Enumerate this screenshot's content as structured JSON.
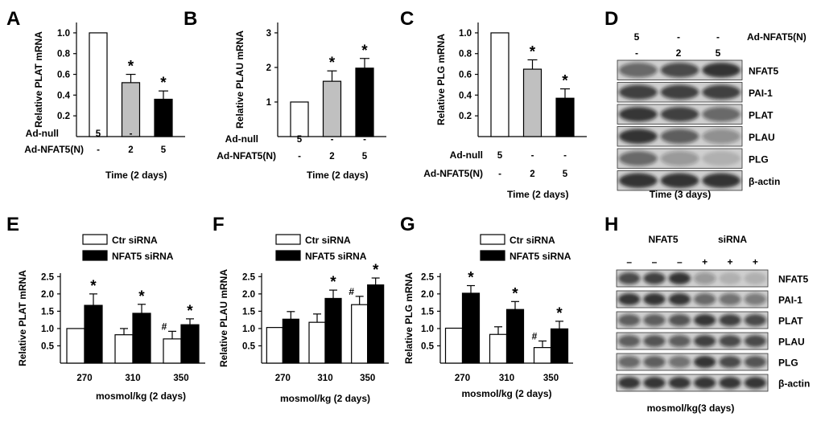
{
  "chart_data": [
    {
      "panel": "A",
      "type": "bar",
      "ylabel": "Relative PLAT mRNA",
      "xlabel": "Time (2 days)",
      "ylim": [
        0,
        1.1
      ],
      "yticks": [
        0.2,
        0.4,
        0.6,
        0.8,
        "1.0"
      ],
      "rows": [
        {
          "label": "Ad-null",
          "values": [
            "5",
            "-",
            "-"
          ]
        },
        {
          "label": "Ad-NFAT5(N)",
          "values": [
            "-",
            "2",
            "5"
          ]
        }
      ],
      "bars": [
        {
          "value": 1.0,
          "error": 0,
          "fill": "#ffffff",
          "mark": ""
        },
        {
          "value": 0.52,
          "error": 0.08,
          "fill": "#c0c0c0",
          "mark": "*"
        },
        {
          "value": 0.36,
          "error": 0.08,
          "fill": "#000000",
          "mark": "*"
        }
      ]
    },
    {
      "panel": "B",
      "type": "bar",
      "ylabel": "Relative PLAU mRNA",
      "xlabel": "Time (2 days)",
      "ylim": [
        0,
        3.3
      ],
      "yticks": [
        "1",
        "2",
        "3"
      ],
      "rows": [
        {
          "label": "Ad-null",
          "values": [
            "5",
            "-",
            "-"
          ]
        },
        {
          "label": "Ad-NFAT5(N)",
          "values": [
            "-",
            "2",
            "5"
          ]
        }
      ],
      "bars": [
        {
          "value": 1.0,
          "error": 0,
          "fill": "#ffffff",
          "mark": ""
        },
        {
          "value": 1.6,
          "error": 0.3,
          "fill": "#c0c0c0",
          "mark": "*"
        },
        {
          "value": 1.98,
          "error": 0.28,
          "fill": "#000000",
          "mark": "*"
        }
      ]
    },
    {
      "panel": "C",
      "type": "bar",
      "ylabel": "Relative PLG mRNA",
      "xlabel": "Time (2 days)",
      "ylim": [
        0,
        1.1
      ],
      "yticks": [
        0.2,
        0.4,
        0.6,
        0.8,
        "1.0"
      ],
      "rows": [
        {
          "label": "Ad-null",
          "values": [
            "5",
            "-",
            "-"
          ]
        },
        {
          "label": "Ad-NFAT5(N)",
          "values": [
            "-",
            "2",
            "5"
          ]
        }
      ],
      "bars": [
        {
          "value": 1.0,
          "error": 0,
          "fill": "#ffffff",
          "mark": ""
        },
        {
          "value": 0.65,
          "error": 0.09,
          "fill": "#c0c0c0",
          "mark": "*"
        },
        {
          "value": 0.37,
          "error": 0.09,
          "fill": "#000000",
          "mark": "*"
        }
      ]
    },
    {
      "panel": "E",
      "type": "bar",
      "ylabel": "Relative PLAT mRNA",
      "xlabel": "mosmol/kg (2 days)",
      "ylim": [
        0,
        2.6
      ],
      "yticks": [
        "0.5",
        "1.0",
        "1.5",
        "2.0",
        "2.5"
      ],
      "categories": [
        "270",
        "310",
        "350"
      ],
      "legend": [
        "Ctr siRNA",
        "NFAT5 siRNA"
      ],
      "series": [
        {
          "name": "Ctr siRNA",
          "fill": "#ffffff",
          "values": [
            1.0,
            0.82,
            0.7
          ],
          "errors": [
            0,
            0.18,
            0.22
          ],
          "marks": [
            "",
            "",
            "#"
          ]
        },
        {
          "name": "NFAT5 siRNA",
          "fill": "#000000",
          "values": [
            1.67,
            1.44,
            1.11
          ],
          "errors": [
            0.33,
            0.26,
            0.17
          ],
          "marks": [
            "*",
            "*",
            "*"
          ]
        }
      ]
    },
    {
      "panel": "F",
      "type": "bar",
      "ylabel": "Relative PLAU mRNA",
      "xlabel": "mosmol/kg (2 days)",
      "ylim": [
        0,
        2.6
      ],
      "yticks": [
        "0.5",
        "1.0",
        "1.5",
        "2.0",
        "2.5"
      ],
      "categories": [
        "270",
        "310",
        "350"
      ],
      "legend": [
        "Ctr siRNA",
        "NFAT5 siRNA"
      ],
      "series": [
        {
          "name": "Ctr siRNA",
          "fill": "#ffffff",
          "values": [
            1.03,
            1.18,
            1.69
          ],
          "errors": [
            0,
            0.24,
            0.24
          ],
          "marks": [
            "",
            "",
            "#"
          ]
        },
        {
          "name": "NFAT5 siRNA",
          "fill": "#000000",
          "values": [
            1.27,
            1.87,
            2.26
          ],
          "errors": [
            0.22,
            0.24,
            0.2
          ],
          "marks": [
            "",
            "*",
            "*"
          ]
        }
      ]
    },
    {
      "panel": "G",
      "type": "bar",
      "ylabel": "Relative PLG mRNA",
      "xlabel": "mosmol/kg (2 days)",
      "ylim": [
        0,
        2.6
      ],
      "yticks": [
        "0.5",
        "1.0",
        "1.5",
        "2.0",
        "2.5"
      ],
      "categories": [
        "270",
        "310",
        "350"
      ],
      "legend": [
        "Ctr siRNA",
        "NFAT5 siRNA"
      ],
      "series": [
        {
          "name": "Ctr siRNA",
          "fill": "#ffffff",
          "values": [
            1.01,
            0.83,
            0.45
          ],
          "errors": [
            0,
            0.22,
            0.19
          ],
          "marks": [
            "",
            "",
            "#"
          ]
        },
        {
          "name": "NFAT5 siRNA",
          "fill": "#000000",
          "values": [
            2.02,
            1.55,
            0.99
          ],
          "errors": [
            0.22,
            0.23,
            0.22
          ],
          "marks": [
            "*",
            "*",
            "*"
          ]
        }
      ]
    }
  ],
  "blots": {
    "D": {
      "panel": "D",
      "header_rows": [
        {
          "values": [
            "5",
            "-",
            "-"
          ],
          "label": "Ad-NFAT5(N)"
        },
        {
          "values": [
            "-",
            "2",
            "5"
          ],
          "label": ""
        }
      ],
      "bands": [
        "NFAT5",
        "PAI-1",
        "PLAT",
        "PLAU",
        "PLG",
        "β-actin"
      ],
      "intensity": [
        [
          0.55,
          0.7,
          0.85
        ],
        [
          0.75,
          0.75,
          0.75
        ],
        [
          0.8,
          0.75,
          0.55
        ],
        [
          0.85,
          0.6,
          0.35
        ],
        [
          0.55,
          0.3,
          0.15
        ],
        [
          0.85,
          0.85,
          0.85
        ]
      ],
      "caption": "Time (3 days)"
    },
    "H": {
      "panel": "H",
      "header_titles": [
        "NFAT5",
        "siRNA"
      ],
      "header_signs": [
        "–",
        "–",
        "–",
        "+",
        "+",
        "+"
      ],
      "bands": [
        "NFAT5",
        "PAI-1",
        "PLAT",
        "PLAU",
        "PLG",
        "β-actin"
      ],
      "intensity": [
        [
          0.7,
          0.75,
          0.85,
          0.3,
          0.15,
          0.15
        ],
        [
          0.8,
          0.85,
          0.8,
          0.55,
          0.5,
          0.45
        ],
        [
          0.6,
          0.6,
          0.65,
          0.8,
          0.75,
          0.7
        ],
        [
          0.6,
          0.65,
          0.6,
          0.75,
          0.7,
          0.7
        ],
        [
          0.55,
          0.6,
          0.5,
          0.85,
          0.7,
          0.65
        ],
        [
          0.8,
          0.8,
          0.8,
          0.8,
          0.8,
          0.8
        ]
      ],
      "caption": "mosmol/kg(3 days)"
    }
  }
}
